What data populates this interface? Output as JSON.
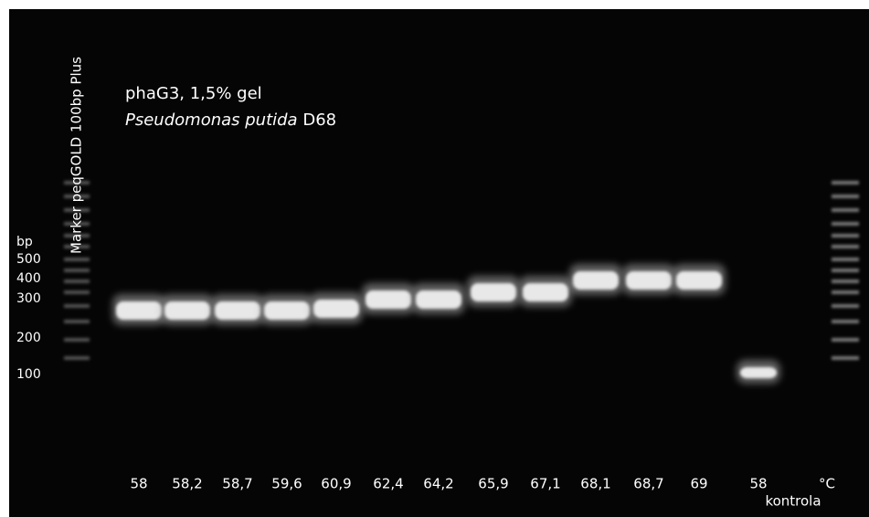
{
  "marker_label": "Marker peqGOLD 100bp Plus",
  "caption": {
    "line1": "phaG3, 1,5% gel",
    "organism": "Pseudomonas putida",
    "strain": "D68"
  },
  "size_axis": {
    "unit": "bp",
    "labels": [
      "500",
      "400",
      "300",
      "200",
      "100"
    ]
  },
  "lanes": [
    "58",
    "58,2",
    "58,7",
    "59,6",
    "60,9",
    "62,4",
    "64,2",
    "65,9",
    "67,1",
    "68,1",
    "68,7",
    "69",
    "58"
  ],
  "control_label": "kontrola",
  "temperature_unit": "°C"
}
